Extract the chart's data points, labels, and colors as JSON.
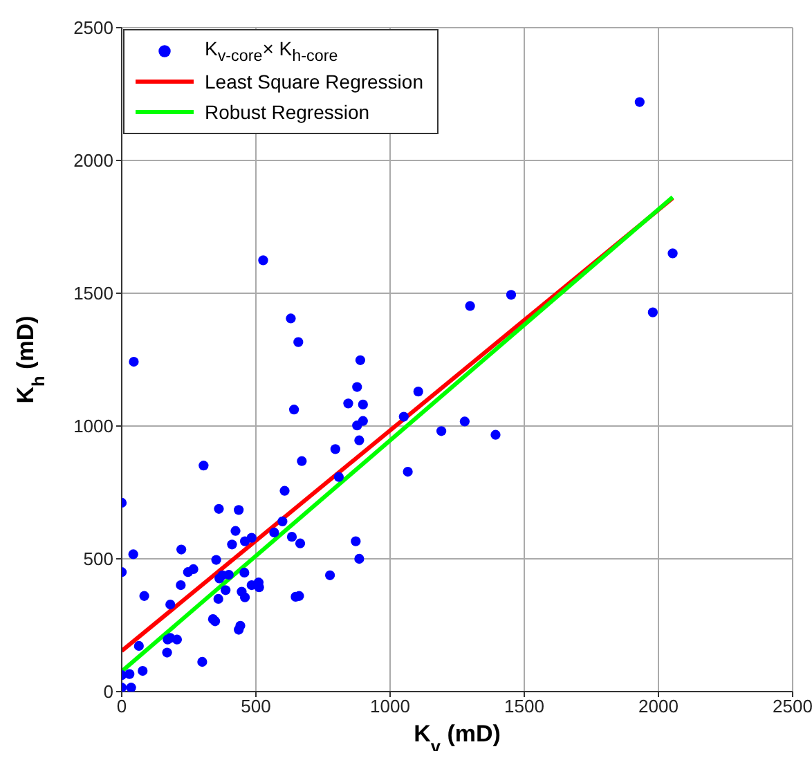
{
  "chart_data": {
    "type": "scatter",
    "xlabel": "K$_{v}$ (mD)",
    "ylabel": "K$_{h}$ (mD)",
    "xlim": [
      0,
      2500
    ],
    "xticks": [
      0,
      500,
      1000,
      1500,
      2000,
      2500
    ],
    "ylim": [
      0,
      2500
    ],
    "yticks": [
      0,
      500,
      1000,
      1500,
      2000,
      2500
    ],
    "grid": true,
    "legend": "top left",
    "series": [
      {
        "name": "K$_{v-core}$× K$_{h-core}$",
        "marker": "circle",
        "color": "#0000ff",
        "x": [
          1930,
          2053,
          1979,
          1451,
          1298,
          527,
          630,
          658,
          45,
          889,
          877,
          1105,
          844,
          899,
          642,
          1051,
          899,
          877,
          1278,
          1191,
          1393,
          885,
          796,
          671,
          1066,
          305,
          809,
          607,
          0,
          362,
          436,
          599,
          424,
          568,
          634,
          665,
          484,
          459,
          411,
          872,
          885,
          222,
          43,
          352,
          0,
          247,
          267,
          457,
          776,
          375,
          364,
          399,
          220,
          484,
          510,
          512,
          387,
          447,
          459,
          360,
          84,
          648,
          661,
          181,
          340,
          348,
          442,
          436,
          181,
          206,
          171,
          64,
          169,
          300,
          78,
          0,
          29,
          0,
          35
        ],
        "values": [
          2220,
          1650,
          1428,
          1494,
          1452,
          1624,
          1405,
          1316,
          1242,
          1248,
          1147,
          1130,
          1085,
          1081,
          1062,
          1035,
          1019,
          1002,
          1017,
          981,
          967,
          946,
          913,
          868,
          828,
          851,
          808,
          756,
          711,
          688,
          684,
          641,
          605,
          599,
          583,
          558,
          579,
          566,
          554,
          566,
          500,
          535,
          517,
          496,
          450,
          450,
          461,
          448,
          438,
          438,
          426,
          440,
          401,
          401,
          411,
          393,
          382,
          376,
          355,
          349,
          360,
          357,
          360,
          328,
          273,
          265,
          248,
          233,
          202,
          196,
          196,
          172,
          147,
          112,
          78,
          62,
          66,
          15,
          15
        ]
      },
      {
        "name": "Least Square Regression",
        "type": "line",
        "color": "#ff0000",
        "x": [
          0,
          2053
        ],
        "values": [
          153,
          1858
        ]
      },
      {
        "name": "Robust Regression",
        "type": "line",
        "color": "#00ff00",
        "x": [
          0,
          2053
        ],
        "values": [
          76,
          1862
        ]
      }
    ]
  }
}
